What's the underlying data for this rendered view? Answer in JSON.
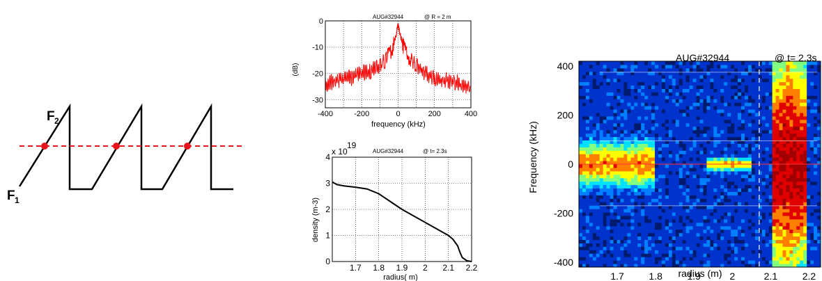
{
  "sweep": {
    "label_f1_main": "F",
    "label_f1_sub": "1",
    "label_f2_main": "F",
    "label_f2_sub": "2",
    "line_color": "#000000",
    "dash_color": "#e8141b",
    "dot_color": "#e8141b"
  },
  "chart_data": [
    {
      "type": "line",
      "title_left": "AUG#32944",
      "title_right": "@ R = 2 m",
      "xlabel": "frequency (kHz)",
      "ylabel": "(dB)",
      "xlim": [
        -400,
        400
      ],
      "ylim": [
        -33,
        0
      ],
      "xticks": [
        "-400",
        "-200",
        "0",
        "200",
        "400"
      ],
      "yticks": [
        "0",
        "-10",
        "-20",
        "-30"
      ],
      "grid": true,
      "series": [
        {
          "color": "#ff0000",
          "x": [
            -400,
            -350,
            -300,
            -250,
            -200,
            -150,
            -100,
            -60,
            -30,
            -10,
            0,
            10,
            30,
            60,
            100,
            150,
            200,
            250,
            300,
            350,
            400
          ],
          "y": [
            -24,
            -23,
            -22,
            -21.5,
            -20,
            -19,
            -17,
            -14,
            -10,
            -5,
            -1,
            -5,
            -10,
            -14,
            -17,
            -20,
            -22,
            -22.5,
            -23,
            -24,
            -25
          ]
        }
      ]
    },
    {
      "type": "line",
      "title_left": "AUG#32944",
      "title_right": "@ t= 2.3s",
      "xlabel": "radius( m)",
      "ylabel": "density (m-3)",
      "multiplier": "x 10",
      "multiplier_exp": "19",
      "xlim": [
        1.6,
        2.2
      ],
      "ylim": [
        0,
        4
      ],
      "xticks": [
        "1.7",
        "1.8",
        "1.9",
        "2",
        "2.1",
        "2.2"
      ],
      "yticks": [
        "0",
        "1",
        "2",
        "3",
        "4"
      ],
      "grid": true,
      "series": [
        {
          "color": "#000000",
          "x": [
            1.6,
            1.62,
            1.65,
            1.7,
            1.75,
            1.8,
            1.85,
            1.9,
            1.95,
            2.0,
            2.05,
            2.1,
            2.12,
            2.14,
            2.15,
            2.16,
            2.18,
            2.2
          ],
          "y": [
            3.05,
            2.95,
            2.9,
            2.85,
            2.78,
            2.6,
            2.3,
            2.0,
            1.75,
            1.5,
            1.25,
            1.0,
            0.85,
            0.6,
            0.35,
            0.15,
            0.03,
            0.0
          ]
        }
      ]
    },
    {
      "type": "heatmap",
      "title_left": "AUG#32944",
      "title_right": "@ t= 2.3s",
      "xlabel": "radius (m)",
      "ylabel": "Frequency (kHz)",
      "xlim": [
        1.6,
        2.23
      ],
      "ylim": [
        -420,
        420
      ],
      "xticks": [
        "1.7",
        "1.8",
        "1.9",
        "2",
        "2.1",
        "2.2"
      ],
      "yticks": [
        "400",
        "200",
        "0",
        "-200",
        "-400"
      ],
      "grid": false,
      "dashed_marker_x": 2.07,
      "colorscale": [
        "#001a6e",
        "#0033cc",
        "#0080ff",
        "#00e0ff",
        "#80ff80",
        "#ffff00",
        "#ff8000",
        "#e00000",
        "#a00000"
      ],
      "hot_bands": [
        {
          "x_range": [
            1.6,
            1.8
          ],
          "width_khz": 70,
          "peak": 0.75
        },
        {
          "x_range": [
            1.93,
            2.05
          ],
          "width_khz": 20,
          "peak": 0.7
        },
        {
          "x_range": [
            2.1,
            2.19
          ],
          "width_khz": 420,
          "peak": 0.95
        }
      ]
    }
  ]
}
